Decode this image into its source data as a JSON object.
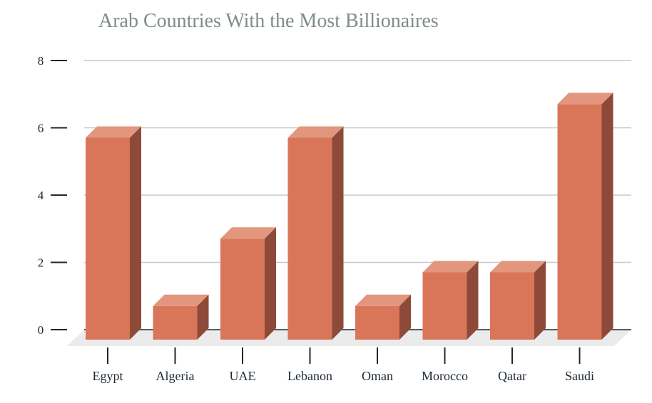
{
  "chart_data": {
    "type": "bar",
    "title": "Arab Countries With the Most Billionaires",
    "categories": [
      "Egypt",
      "Algeria",
      "UAE",
      "Lebanon",
      "Oman",
      "Morocco",
      "Qatar",
      "Saudi"
    ],
    "values": [
      6,
      1,
      3,
      6,
      1,
      2,
      2,
      7
    ],
    "ylim": [
      0,
      8
    ],
    "yticks": [
      0,
      2,
      4,
      6,
      8
    ],
    "grid": true,
    "three_d": true,
    "colors": {
      "bar_front": "#d97659",
      "bar_top": "#e3967e",
      "bar_side": "#8e4a38",
      "grid": "#c8c8c8",
      "floor": "#ebebeb",
      "axis": "#1c2833"
    }
  }
}
